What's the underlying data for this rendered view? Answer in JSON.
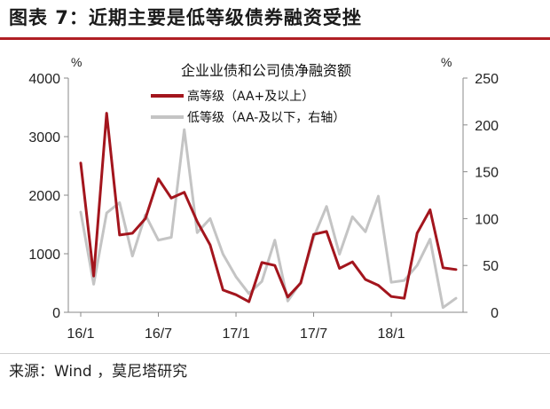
{
  "figure_title": "图表 7：近期主要是低等级债券融资受挫",
  "source": "来源：Wind ，莫尼塔研究",
  "chart_data": {
    "type": "line",
    "title": "企业业债和公司债净融资额",
    "left_unit": "%",
    "right_unit": "%",
    "ylim_left": [
      0,
      4000
    ],
    "ylim_right": [
      0,
      250
    ],
    "left_ticks": [
      "0",
      "1000",
      "2000",
      "3000",
      "4000"
    ],
    "right_ticks": [
      "0",
      "50",
      "100",
      "150",
      "200",
      "250"
    ],
    "x_tick_labels": [
      "16/1",
      "16/7",
      "17/1",
      "17/7",
      "18/1"
    ],
    "x_tick_index": [
      0,
      6,
      12,
      18,
      24
    ],
    "categories": [
      "16/1",
      "16/2",
      "16/3",
      "16/4",
      "16/5",
      "16/6",
      "16/7",
      "16/8",
      "16/9",
      "16/10",
      "16/11",
      "16/12",
      "17/1",
      "17/2",
      "17/3",
      "17/4",
      "17/5",
      "17/6",
      "17/7",
      "17/8",
      "17/9",
      "17/10",
      "17/11",
      "17/12",
      "18/1",
      "18/2",
      "18/3",
      "18/4",
      "18/5",
      "18/6"
    ],
    "series": [
      {
        "name": "高等级（AA+及以上）",
        "axis": "left",
        "color": "#a3151d",
        "values": [
          2550,
          620,
          3400,
          1320,
          1350,
          1600,
          2280,
          1950,
          2050,
          1550,
          1150,
          380,
          300,
          180,
          850,
          800,
          260,
          500,
          1330,
          1380,
          750,
          860,
          560,
          460,
          270,
          240,
          1350,
          1750,
          760,
          730
        ]
      },
      {
        "name": "低等级（AA-及以下，右轴）",
        "axis": "right",
        "color": "#c4c4c4",
        "values": [
          107,
          30,
          106,
          117,
          60,
          104,
          77,
          80,
          195,
          85,
          100,
          62,
          38,
          20,
          33,
          77,
          12,
          32,
          80,
          113,
          62,
          102,
          86,
          124,
          32,
          34,
          50,
          78,
          5,
          15
        ]
      }
    ]
  }
}
